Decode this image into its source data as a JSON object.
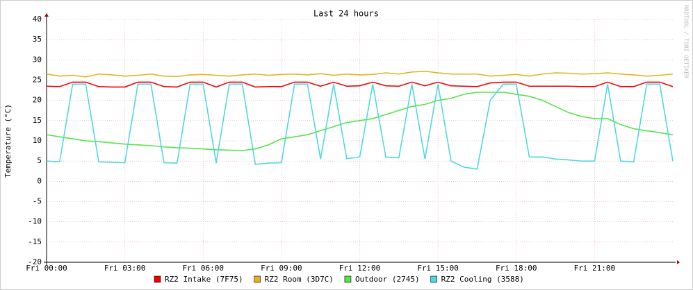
{
  "chart_data": {
    "type": "line",
    "title": "Last 24 hours",
    "y_label": "Temperature (°C)",
    "watermark": "RRDTOOL / TOBI OETIKER",
    "x": [
      0,
      0.5,
      1,
      1.5,
      2,
      2.5,
      3,
      3.5,
      4,
      4.5,
      5,
      5.5,
      6,
      6.5,
      7,
      7.5,
      8,
      8.5,
      9,
      9.5,
      10,
      10.5,
      11,
      11.5,
      12,
      12.5,
      13,
      13.5,
      14,
      14.5,
      15,
      15.5,
      16,
      16.5,
      17,
      17.5,
      18,
      18.5,
      19,
      19.5,
      20,
      20.5,
      21,
      21.5,
      22,
      22.5,
      23,
      23.5,
      24
    ],
    "xlim": [
      0,
      24
    ],
    "xticks": [
      {
        "value": 0,
        "label": "Fri 00:00"
      },
      {
        "value": 3,
        "label": "Fri 03:00"
      },
      {
        "value": 6,
        "label": "Fri 06:00"
      },
      {
        "value": 9,
        "label": "Fri 09:00"
      },
      {
        "value": 12,
        "label": "Fri 12:00"
      },
      {
        "value": 15,
        "label": "Fri 15:00"
      },
      {
        "value": 18,
        "label": "Fri 18:00"
      },
      {
        "value": 21,
        "label": "Fri 21:00"
      }
    ],
    "ylim": [
      -20,
      40
    ],
    "yticks": [
      -20,
      -15,
      -10,
      -5,
      0,
      5,
      10,
      15,
      20,
      25,
      30,
      35,
      40
    ],
    "grid": true,
    "series": [
      {
        "name": "RZ2 Intake (7F75)",
        "color": "#ee0000",
        "values": [
          23.5,
          23.4,
          24.5,
          24.5,
          23.4,
          23.3,
          23.3,
          24.5,
          24.5,
          23.4,
          23.3,
          24.5,
          24.5,
          23.3,
          24.5,
          24.5,
          23.3,
          23.4,
          23.4,
          24.5,
          24.5,
          23.5,
          24.5,
          23.5,
          23.6,
          24.5,
          23.6,
          23.5,
          24.5,
          23.6,
          24.5,
          23.6,
          23.5,
          23.4,
          24.3,
          24.5,
          24.5,
          23.5,
          23.5,
          23.5,
          23.5,
          23.4,
          23.4,
          24.5,
          23.4,
          23.4,
          24.5,
          24.5,
          23.4
        ]
      },
      {
        "name": "RZ2 Room (3D7C)",
        "color": "#e5b21e",
        "values": [
          26.5,
          26,
          26.2,
          25.8,
          26.5,
          26.3,
          26,
          26.2,
          26.5,
          26,
          25.9,
          26.3,
          26.4,
          26.2,
          26,
          26.3,
          26.5,
          26.2,
          26.4,
          26.5,
          26.3,
          26.6,
          26.2,
          26.5,
          26.3,
          26.4,
          26.8,
          26.5,
          27,
          27.2,
          26.8,
          26.5,
          26.5,
          26.5,
          26,
          26.2,
          26.4,
          26,
          26.5,
          26.8,
          26.7,
          26.5,
          26.6,
          26.8,
          26.5,
          26.3,
          26,
          26.2,
          26.5
        ]
      },
      {
        "name": "Outdoor (2745)",
        "color": "#54e34a",
        "values": [
          11.5,
          11,
          10.5,
          10,
          9.8,
          9.5,
          9.2,
          9,
          8.8,
          8.5,
          8.3,
          8.2,
          8,
          7.8,
          7.7,
          7.6,
          8,
          9,
          10.5,
          11,
          11.5,
          12.5,
          13.5,
          14.5,
          15,
          15.5,
          16.5,
          17.5,
          18.5,
          19,
          20,
          20.5,
          21.5,
          22,
          22,
          22,
          21.5,
          21,
          20,
          18.5,
          17,
          16,
          15.5,
          15.5,
          14,
          13,
          12.5,
          12,
          11.5
        ]
      },
      {
        "name": "RZ2 Cooling (3588)",
        "color": "#4fd8e0",
        "values": [
          5,
          4.8,
          24,
          24,
          4.8,
          4.7,
          4.6,
          24,
          24,
          4.6,
          4.5,
          24,
          24,
          4.5,
          24,
          24,
          4.2,
          4.5,
          4.6,
          24,
          24,
          5.5,
          24,
          5.6,
          6,
          24,
          6,
          5.8,
          24,
          5.5,
          24,
          5,
          3.5,
          3,
          20,
          24,
          24,
          6,
          6,
          5.5,
          5.3,
          5,
          5,
          24,
          5,
          4.8,
          24,
          24,
          5
        ]
      }
    ]
  }
}
